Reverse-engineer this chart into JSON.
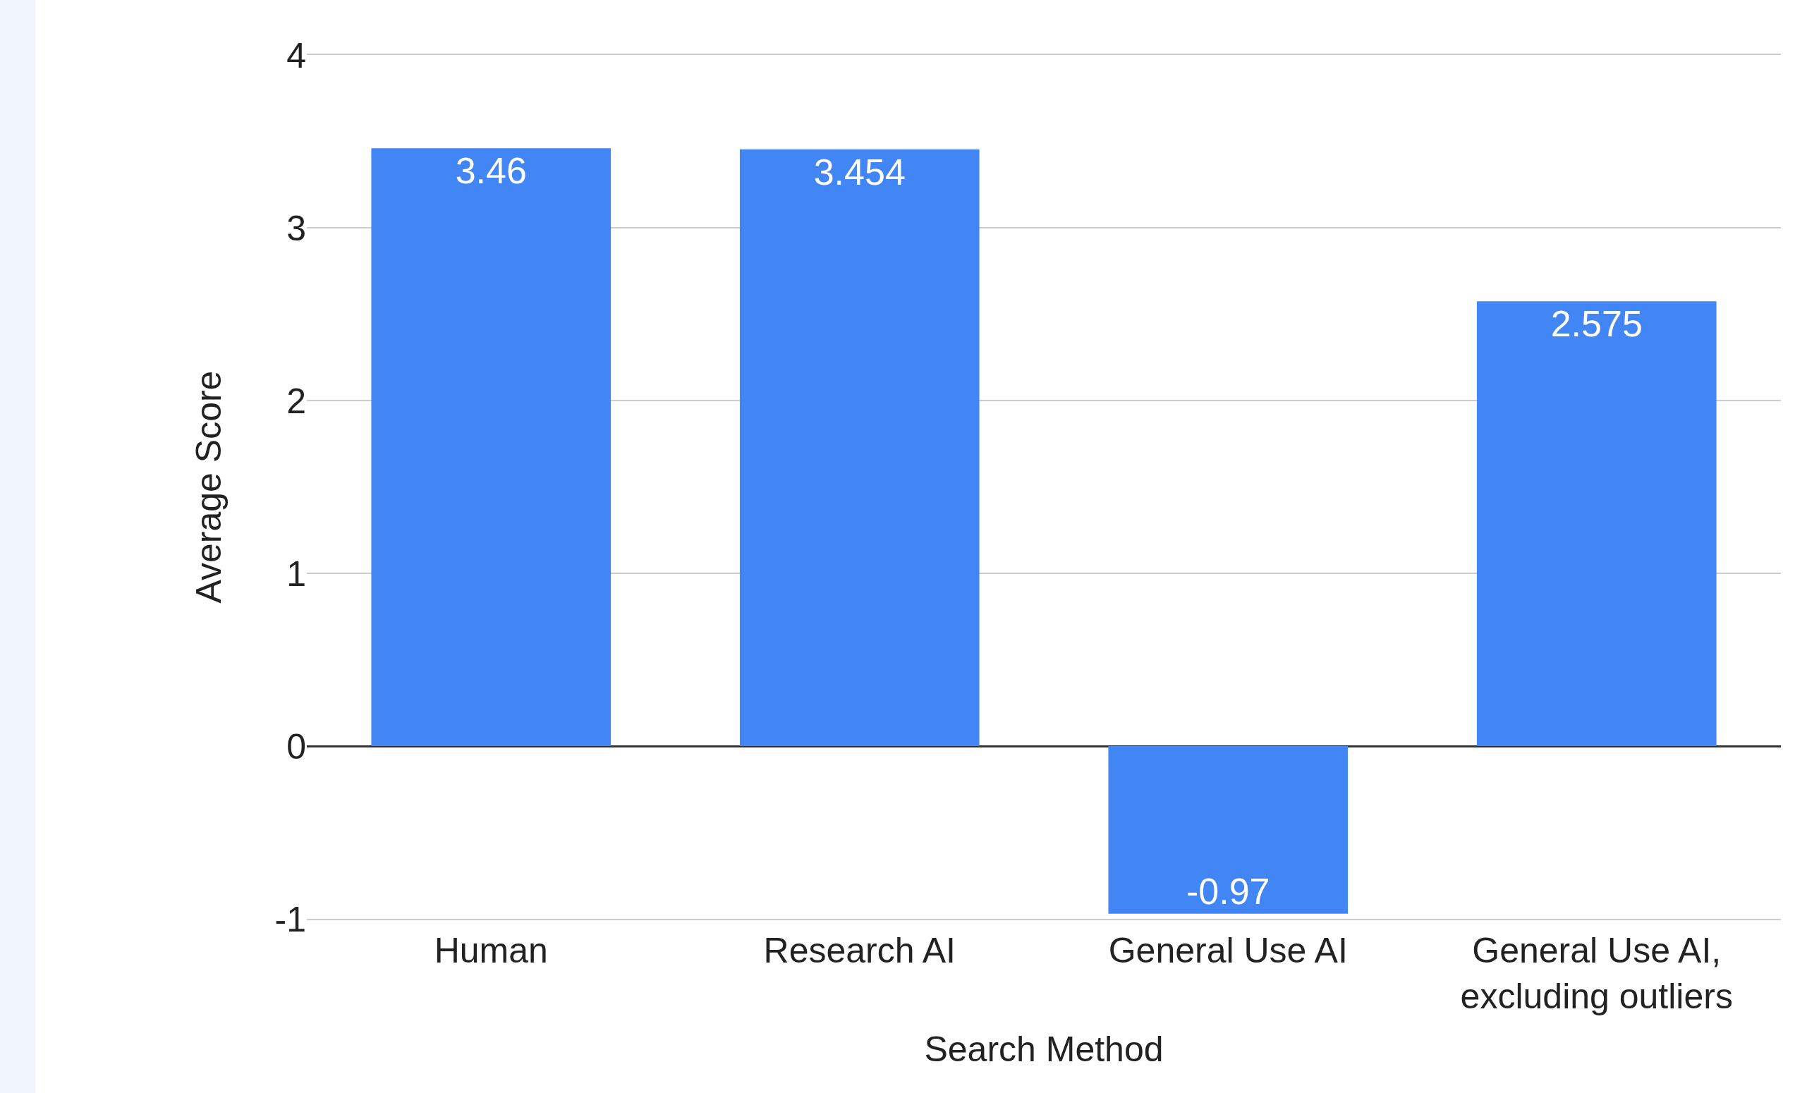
{
  "chart_data": {
    "type": "bar",
    "xlabel": "Search Method",
    "ylabel": "Average Score",
    "categories": [
      "Human",
      "Research AI",
      "General Use AI",
      "General Use AI, excluding outliers"
    ],
    "values": [
      3.46,
      3.454,
      -0.97,
      2.575
    ],
    "color": "#4285f4",
    "ylim": [
      -1,
      4
    ],
    "yticks": [
      -1,
      0,
      1,
      2,
      3,
      4
    ],
    "grid": "y",
    "data_labels": true
  }
}
